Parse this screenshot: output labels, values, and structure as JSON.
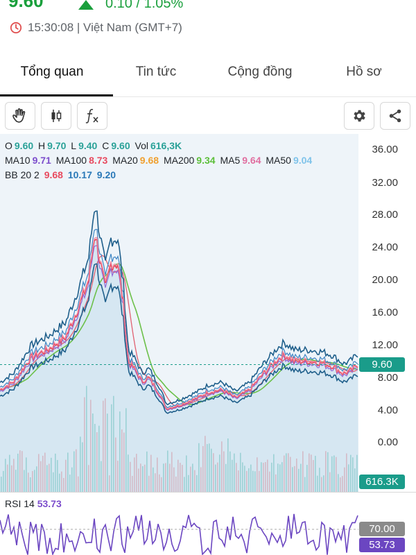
{
  "header": {
    "price": "9.60",
    "change": "0.10 / 1.05%",
    "time": "15:30:08 | Việt Nam (GMT+7)"
  },
  "tabs": [
    {
      "label": "Tổng quan",
      "active": true
    },
    {
      "label": "Tin tức",
      "active": false
    },
    {
      "label": "Cộng đồng",
      "active": false
    },
    {
      "label": "Hồ sơ",
      "active": false
    }
  ],
  "toolbar": {
    "icons": [
      "hand-pan-icon",
      "candlestick-icon",
      "function-fx-icon",
      "gear-icon",
      "share-icon"
    ]
  },
  "legend": {
    "ohlc": {
      "o_label": "O",
      "o": "9.60",
      "h_label": "H",
      "h": "9.70",
      "l_label": "L",
      "l": "9.40",
      "c_label": "C",
      "c": "9.60",
      "vol_label": "Vol",
      "vol": "616,3K"
    },
    "ma": {
      "ma10_label": "MA10",
      "ma10": "9.71",
      "ma100_label": "MA100",
      "ma100": "8.73",
      "ma20_label": "MA20",
      "ma20": "9.68",
      "ma200_label": "MA200",
      "ma200": "9.34",
      "ma5_label": "MA5",
      "ma5": "9.64",
      "ma50_label": "MA50",
      "ma50": "9.04"
    },
    "bb": {
      "label": "BB 20 2",
      "v1": "9.68",
      "v2": "10.17",
      "v3": "9.20"
    }
  },
  "y_axis": [
    "36.00",
    "32.00",
    "28.00",
    "24.00",
    "20.00",
    "16.00",
    "12.00",
    "8.00",
    "4.00",
    "0.00"
  ],
  "tags": {
    "last_price": "9.60",
    "volume": "616.3K",
    "rsi_upper": "70.00",
    "rsi_value": "53.73"
  },
  "rsi": {
    "label": "RSI 14",
    "value": "53.73"
  },
  "colors": {
    "up": "#1a9f3c",
    "price_line": "#e84a5f",
    "bb_band": "#1f5f8b",
    "ma_green": "#6cc04a",
    "rsi_line": "#6b46c1",
    "tag_teal": "#1a9c8a"
  }
}
